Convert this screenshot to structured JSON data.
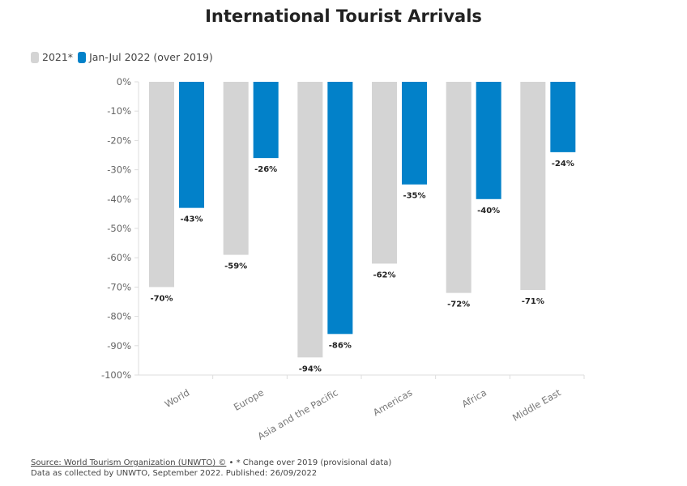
{
  "chart_data": {
    "type": "bar",
    "title": "International Tourist Arrivals",
    "categories": [
      "World",
      "Europe",
      "Asia and the Pacific",
      "Americas",
      "Africa",
      "Middle East"
    ],
    "series": [
      {
        "name": "2021*",
        "color": "#d4d4d4",
        "values": [
          -70,
          -59,
          -94,
          -62,
          -72,
          -71
        ]
      },
      {
        "name": "Jan-Jul 2022 (over 2019)",
        "color": "#0281c9",
        "values": [
          -43,
          -26,
          -86,
          -35,
          -40,
          -24
        ]
      }
    ],
    "ylim": [
      -100,
      0
    ],
    "yticks": [
      0,
      -10,
      -20,
      -30,
      -40,
      -50,
      -60,
      -70,
      -80,
      -90,
      -100
    ],
    "grid": false,
    "legend": "top-left",
    "data_label_suffix": "%"
  },
  "footer": {
    "source": "Source: World Tourism Organization (UNWTO) ©",
    "note": " • * Change over 2019 (provisional data)",
    "line2": "Data as collected by UNWTO, September 2022. Published: 26/09/2022"
  }
}
